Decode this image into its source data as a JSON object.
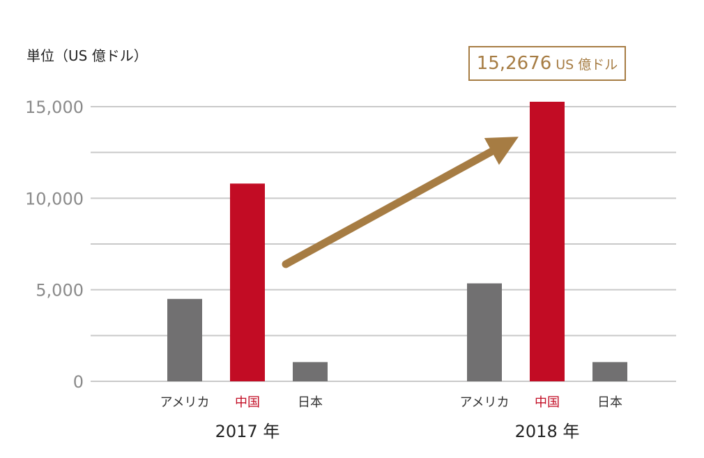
{
  "chart_data": {
    "type": "bar",
    "unit_label": "単位（US 億ドル）",
    "ylim": [
      0,
      15000
    ],
    "y_ticks": [
      {
        "value": 0,
        "label": "0"
      },
      {
        "value": 5000,
        "label": "5,000"
      },
      {
        "value": 10000,
        "label": "10,000"
      },
      {
        "value": 15000,
        "label": "15,000"
      }
    ],
    "grid": true,
    "groups": [
      {
        "label": "2017 年",
        "bars": [
          {
            "category": "アメリカ",
            "value": 4500,
            "highlight": false
          },
          {
            "category": "中国",
            "value": 10800,
            "highlight": true
          },
          {
            "category": "日本",
            "value": 1050,
            "highlight": false
          }
        ]
      },
      {
        "label": "2018 年",
        "bars": [
          {
            "category": "アメリカ",
            "value": 5350,
            "highlight": false
          },
          {
            "category": "中国",
            "value": 15268,
            "highlight": true
          },
          {
            "category": "日本",
            "value": 1050,
            "highlight": false
          }
        ]
      }
    ],
    "annotation": {
      "value_text": "15,2676",
      "unit_text": "US 億ドル"
    },
    "colors": {
      "bar": "#717071",
      "highlight": "#c20c24",
      "accent": "#a67c43",
      "grid": "#c9c9c9",
      "tick_text": "#8a8a8a",
      "label_text": "#333333"
    }
  }
}
